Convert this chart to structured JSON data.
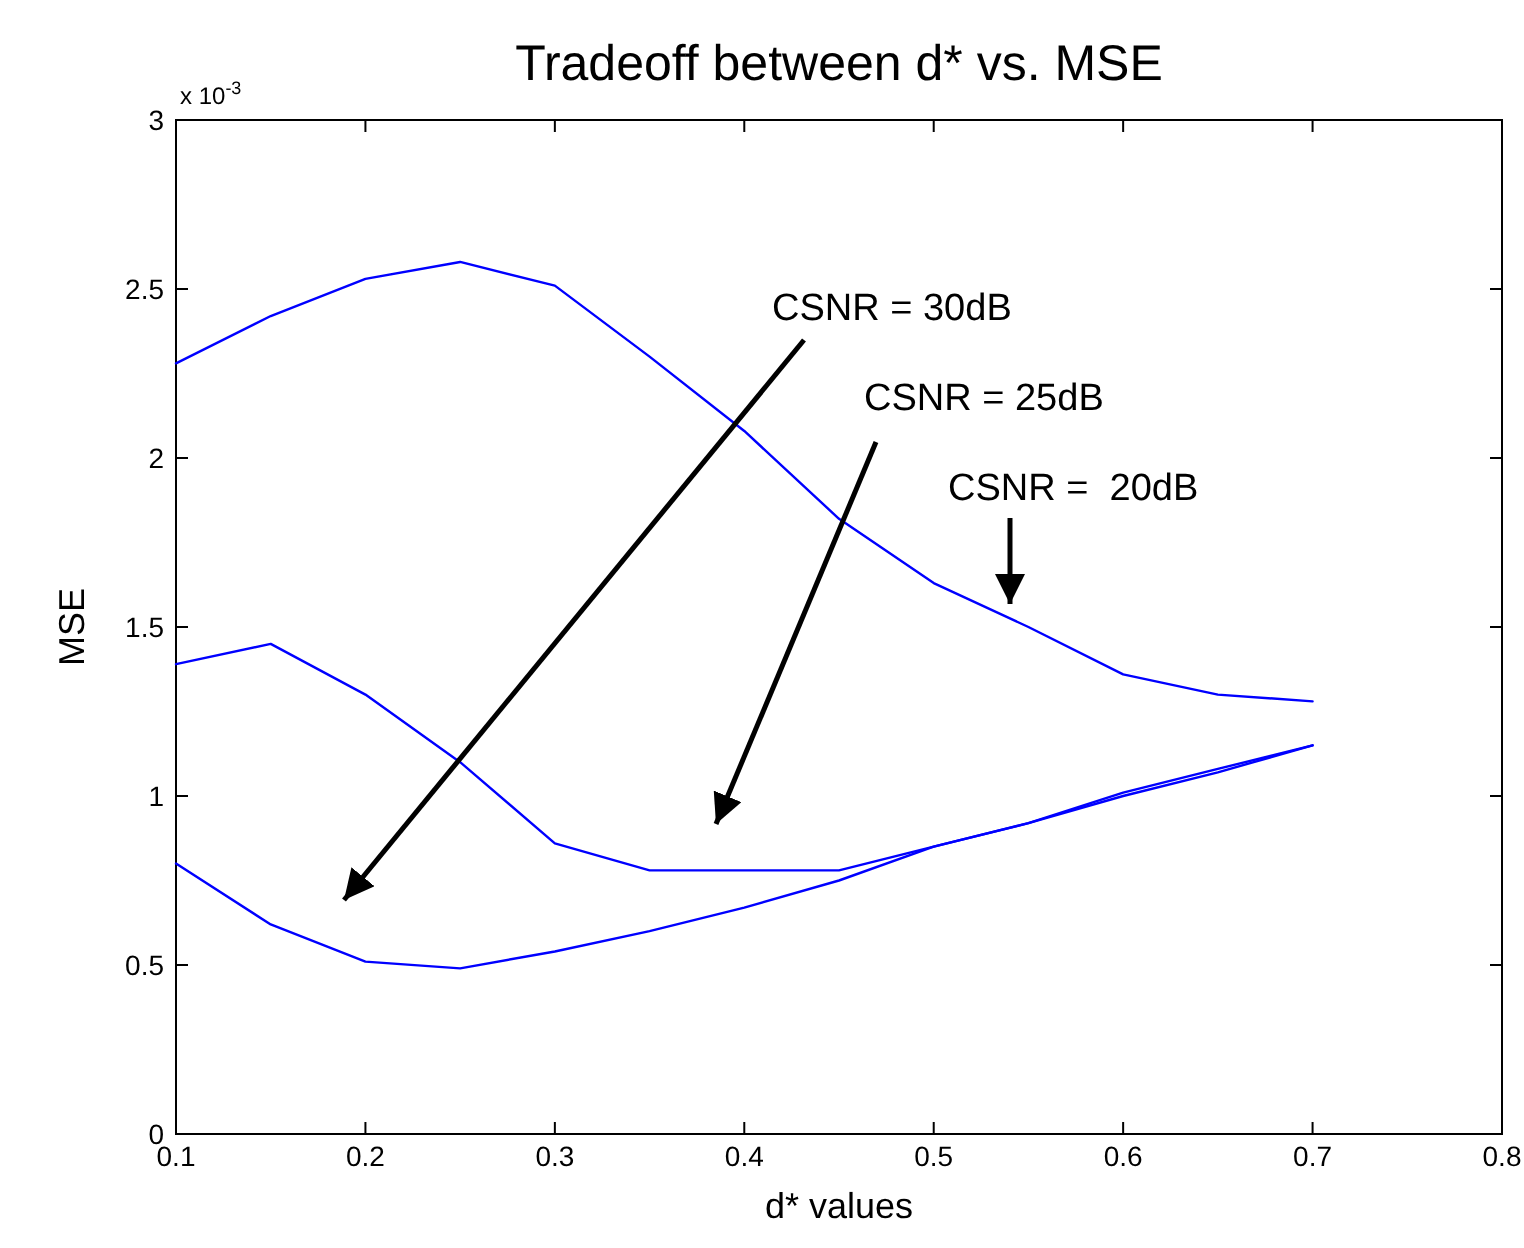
{
  "chart_data": {
    "type": "line",
    "title": "Tradeoff between d* vs. MSE",
    "xlabel": "d* values",
    "ylabel": "MSE",
    "x": [
      0.1,
      0.15,
      0.2,
      0.25,
      0.3,
      0.35,
      0.4,
      0.45,
      0.5,
      0.55,
      0.6,
      0.65,
      0.7
    ],
    "series": [
      {
        "color": "#0000ff",
        "values": [
          2.28,
          2.42,
          2.53,
          2.58,
          2.51,
          2.3,
          2.08,
          1.82,
          1.63,
          1.5,
          1.36,
          1.3,
          1.28
        ]
      },
      {
        "color": "#0000ff",
        "values": [
          1.39,
          1.45,
          1.3,
          1.1,
          0.86,
          0.78,
          0.78,
          0.78,
          0.85,
          0.92,
          1.0,
          1.07,
          1.15
        ]
      },
      {
        "color": "#0000ff",
        "values": [
          0.8,
          0.62,
          0.51,
          0.49,
          0.54,
          0.6,
          0.67,
          0.75,
          0.85,
          0.92,
          1.01,
          1.08,
          1.15
        ]
      }
    ],
    "xlim": [
      0.1,
      0.8
    ],
    "xticks": [
      0.1,
      0.2,
      0.3,
      0.4,
      0.5,
      0.6,
      0.7,
      0.8
    ],
    "ylim": [
      0,
      3
    ],
    "yticks": [
      0,
      0.5,
      1,
      1.5,
      2,
      2.5,
      3
    ],
    "annotations": [
      "x 10$^{-3}$",
      "CSNR = 30dB",
      "CSNR = 25dB",
      "CSNR =  20dB"
    ],
    "grid": false,
    "marker": "none",
    "line_style": "solid"
  }
}
